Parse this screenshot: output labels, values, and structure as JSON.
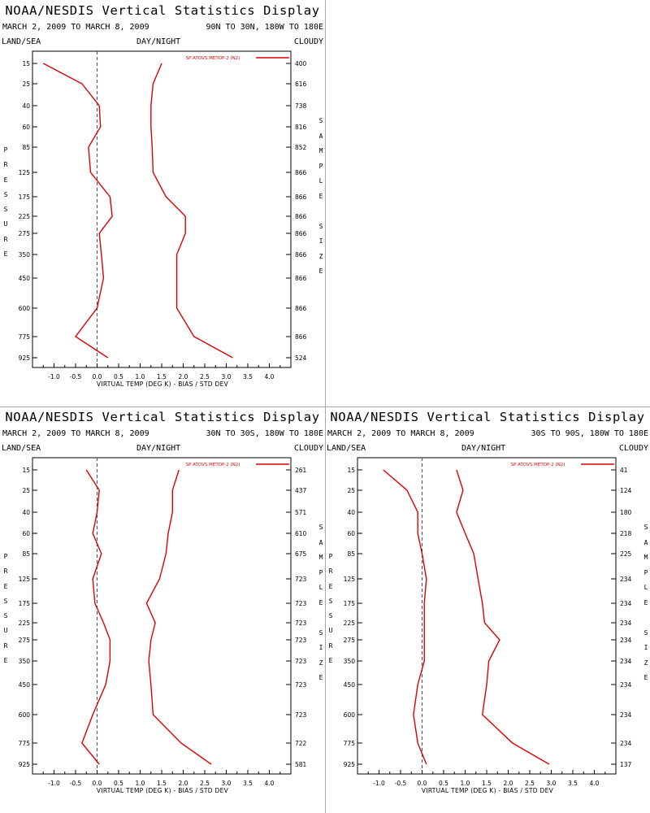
{
  "page": {
    "title": "NOAA/NESDIS Vertical Statistics Display",
    "date_range": "MARCH 2, 2009 TO MARCH 8, 2009",
    "header_left": "LAND/SEA",
    "header_center": "DAY/NIGHT",
    "header_right": "CLOUDY",
    "left_vertical_label": "PRESSURE",
    "right_vertical_label": "SAMPLE SIZE"
  },
  "colors": {
    "series": "#dd0000",
    "axis": "#000000",
    "zero_line": "#4a4a7a",
    "background": "#ffffff"
  },
  "chart_data": [
    {
      "type": "line",
      "region": "90N TO 30N, 180W TO 180E",
      "legend": "SP ATOVS METOP-2 (N2)",
      "legend_position": "top-right",
      "xlabel": "VIRTUAL TEMP (DEG K) - BIAS / STD DEV",
      "ylabel": "PRESSURE",
      "xlim": [
        -1.5,
        4.5
      ],
      "x_ticks": [
        "-1.0",
        "-0.5",
        "0.0",
        "0.5",
        "1.0",
        "1.5",
        "2.0",
        "2.5",
        "3.0",
        "3.5",
        "4.0"
      ],
      "pressure_levels": [
        "15",
        "25",
        "40",
        "60",
        "85",
        "125",
        "175",
        "225",
        "275",
        "350",
        "450",
        "600",
        "775",
        "925"
      ],
      "sample_size": [
        "400",
        "616",
        "738",
        "816",
        "852",
        "866",
        "866",
        "866",
        "866",
        "866",
        "866",
        "866",
        "866",
        "524"
      ],
      "bias": [
        -1.25,
        -0.35,
        0.05,
        0.08,
        -0.2,
        -0.15,
        0.3,
        0.35,
        0.05,
        0.1,
        0.15,
        0.0,
        -0.5,
        0.25
      ],
      "std_dev": [
        1.5,
        1.3,
        1.25,
        1.25,
        1.28,
        1.3,
        1.6,
        2.05,
        2.05,
        1.85,
        1.85,
        1.85,
        2.25,
        3.15
      ]
    },
    {
      "type": "line",
      "region": "30N TO 30S, 180W TO 180E",
      "legend": "SP ATOVS METOP-2 (N2)",
      "legend_position": "top-right",
      "xlabel": "VIRTUAL TEMP (DEG K) - BIAS / STD DEV",
      "ylabel": "PRESSURE",
      "xlim": [
        -1.5,
        4.5
      ],
      "x_ticks": [
        "-1.0",
        "-0.5",
        "0.0",
        "0.5",
        "1.0",
        "1.5",
        "2.0",
        "2.5",
        "3.0",
        "3.5",
        "4.0"
      ],
      "pressure_levels": [
        "15",
        "25",
        "40",
        "60",
        "85",
        "125",
        "175",
        "225",
        "275",
        "350",
        "450",
        "600",
        "775",
        "925"
      ],
      "sample_size": [
        "261",
        "437",
        "571",
        "610",
        "675",
        "723",
        "723",
        "723",
        "723",
        "723",
        "723",
        "723",
        "722",
        "581"
      ],
      "bias": [
        -0.25,
        0.05,
        0.0,
        -0.1,
        0.1,
        -0.1,
        -0.05,
        0.15,
        0.3,
        0.3,
        0.2,
        -0.1,
        -0.35,
        0.05
      ],
      "std_dev": [
        1.9,
        1.75,
        1.75,
        1.65,
        1.6,
        1.45,
        1.15,
        1.35,
        1.25,
        1.2,
        1.25,
        1.3,
        1.95,
        2.65
      ]
    },
    {
      "type": "line",
      "region": "30S TO 90S, 180W TO 180E",
      "legend": "SP ATOVS METOP-2 (N2)",
      "legend_position": "top-right",
      "xlabel": "VIRTUAL TEMP (DEG K) - BIAS / STD DEV",
      "ylabel": "PRESSURE",
      "xlim": [
        -1.5,
        4.5
      ],
      "x_ticks": [
        "-1.0",
        "-0.5",
        "0.0",
        "0.5",
        "1.0",
        "1.5",
        "2.0",
        "2.5",
        "3.0",
        "3.5",
        "4.0"
      ],
      "pressure_levels": [
        "15",
        "25",
        "40",
        "60",
        "85",
        "125",
        "175",
        "225",
        "275",
        "350",
        "450",
        "600",
        "775",
        "925"
      ],
      "sample_size": [
        "41",
        "124",
        "180",
        "218",
        "225",
        "234",
        "234",
        "234",
        "234",
        "234",
        "234",
        "234",
        "234",
        "137"
      ],
      "bias": [
        -0.9,
        -0.35,
        -0.1,
        -0.1,
        0.0,
        0.1,
        0.05,
        0.05,
        0.05,
        0.05,
        -0.1,
        -0.2,
        -0.1,
        0.1
      ],
      "std_dev": [
        0.8,
        0.95,
        0.8,
        1.0,
        1.2,
        1.3,
        1.4,
        1.45,
        1.8,
        1.55,
        1.5,
        1.4,
        2.1,
        2.95
      ]
    }
  ]
}
